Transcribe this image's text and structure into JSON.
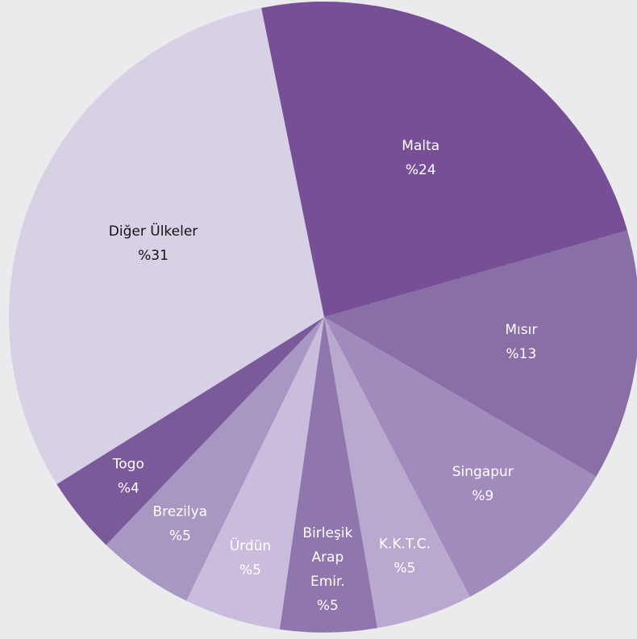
{
  "chart_data": {
    "type": "pie",
    "categories": [
      "Malta",
      "Mısır",
      "Singapur",
      "K.K.T.C.",
      "Birleşik Arap Emir.",
      "Ürdün",
      "Brezilya",
      "Togo",
      "Diğer Ülkeler"
    ],
    "values": [
      24,
      13,
      9,
      5,
      5,
      5,
      5,
      4,
      31
    ],
    "value_labels": [
      "%24",
      "%13",
      "%9",
      "%5",
      "%5",
      "%5",
      "%5",
      "%4",
      "%31"
    ],
    "colors": [
      "#774f96",
      "#8a6ea6",
      "#a08bbc",
      "#b9a9cf",
      "#8f76ac",
      "#c9bcdc",
      "#a896c3",
      "#7a5a9a",
      "#d8d0e5"
    ],
    "label_colors": [
      "#ffffff",
      "#ffffff",
      "#ffffff",
      "#ffffff",
      "#ffffff",
      "#ffffff",
      "#ffffff",
      "#ffffff",
      "#111111"
    ]
  }
}
